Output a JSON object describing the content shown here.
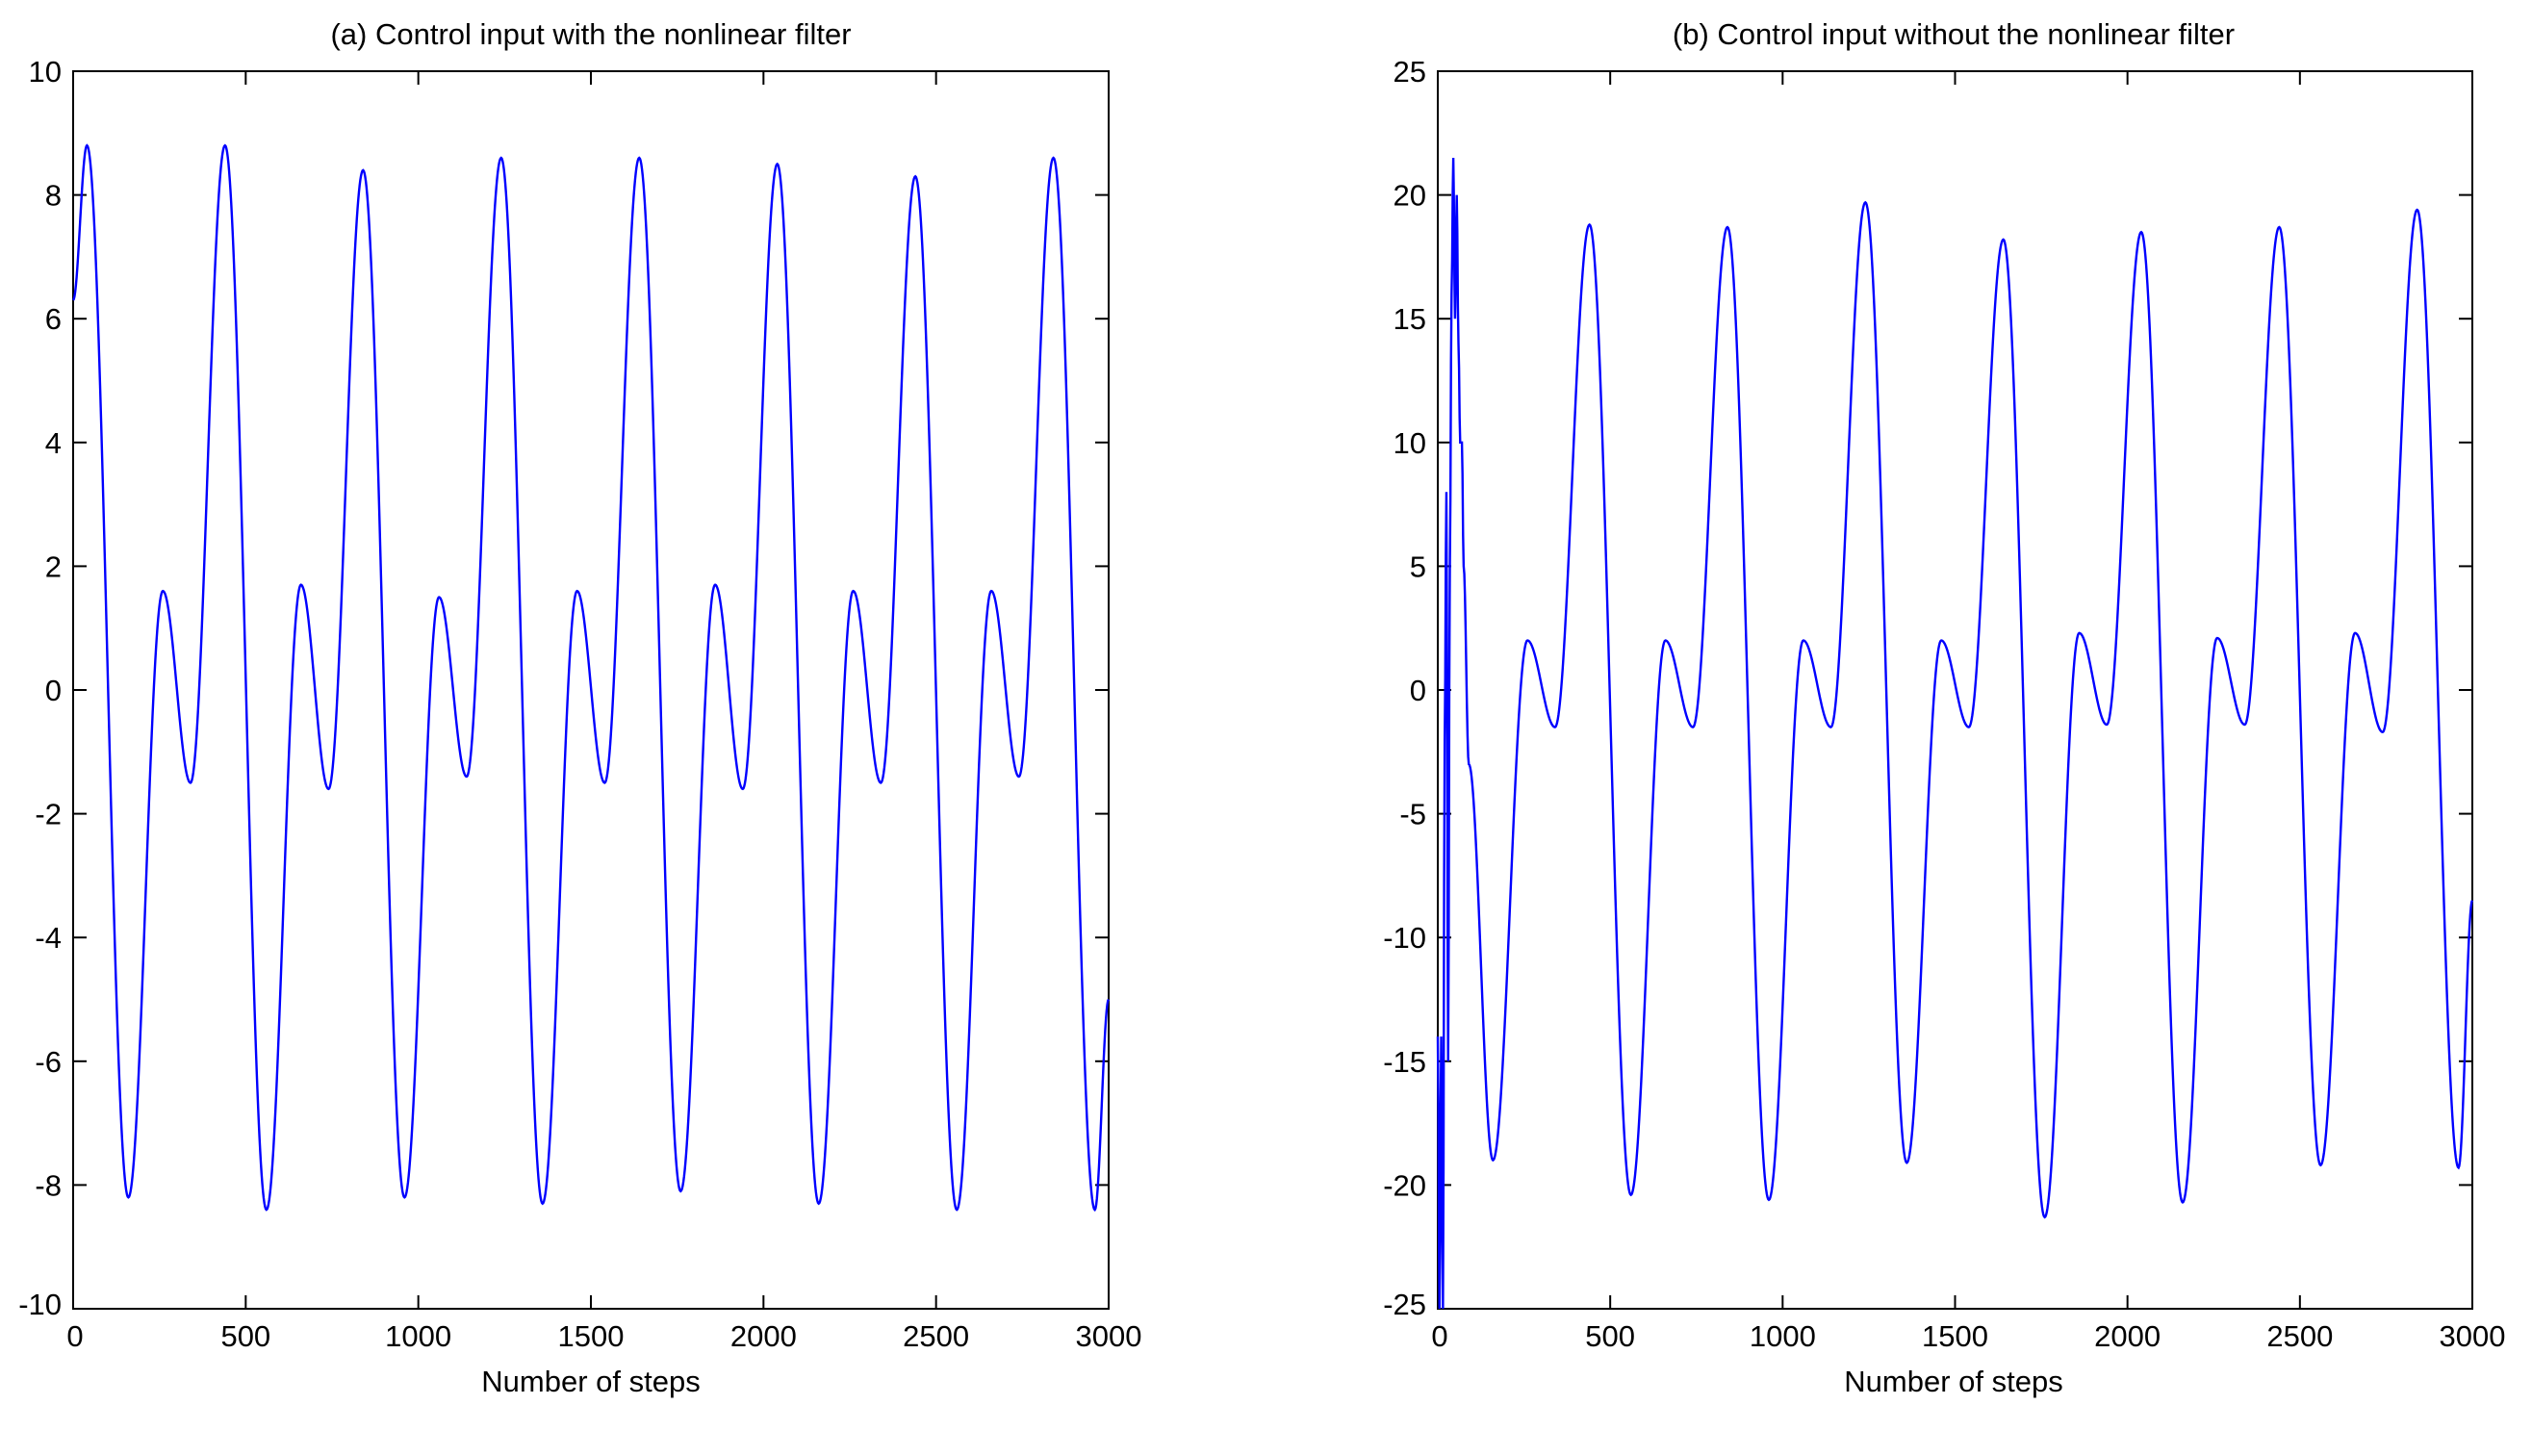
{
  "chart_data": [
    {
      "type": "line",
      "title": "(a)  Control input with the nonlinear filter",
      "xlabel": "Number of steps",
      "ylabel": "",
      "xlim": [
        0,
        3000
      ],
      "ylim": [
        -10,
        10
      ],
      "xticks": [
        0,
        500,
        1000,
        1500,
        2000,
        2500,
        3000
      ],
      "yticks": [
        10,
        8,
        6,
        4,
        2,
        0,
        -2,
        -4,
        -6,
        -8,
        -10
      ],
      "xtick_labels": [
        "0",
        "500",
        "1000",
        "1500",
        "2000",
        "2500",
        "3000"
      ],
      "ytick_labels": [
        "10",
        "8",
        "6",
        "4",
        "2",
        "0",
        "-2",
        "-4",
        "-6",
        "-8",
        "-10"
      ],
      "grid": false,
      "color": "#0000ff",
      "series": [
        {
          "x": [
            0,
            40,
            160,
            260,
            340,
            440,
            560,
            660,
            740,
            840,
            960,
            1060,
            1140,
            1240,
            1360,
            1460,
            1540,
            1640,
            1760,
            1860,
            1940,
            2040,
            2160,
            2260,
            2340,
            2440,
            2560,
            2660,
            2740,
            2840,
            2960,
            3000
          ],
          "y": [
            6.3,
            8.8,
            -8.2,
            1.6,
            -1.5,
            8.8,
            -8.4,
            1.7,
            -1.6,
            8.4,
            -8.2,
            1.5,
            -1.4,
            8.6,
            -8.3,
            1.6,
            -1.5,
            8.6,
            -8.1,
            1.7,
            -1.6,
            8.5,
            -8.3,
            1.6,
            -1.5,
            8.3,
            -8.4,
            1.6,
            -1.4,
            8.6,
            -8.4,
            -5.0
          ]
        }
      ]
    },
    {
      "type": "line",
      "title": "(b)  Control input without the nonlinear filter",
      "xlabel": "Number of steps",
      "ylabel": "",
      "xlim": [
        0,
        3000
      ],
      "ylim": [
        -25,
        25
      ],
      "xticks": [
        0,
        500,
        1000,
        1500,
        2000,
        2500,
        3000
      ],
      "yticks": [
        25,
        20,
        15,
        10,
        5,
        0,
        -5,
        -10,
        -15,
        -20,
        -25
      ],
      "xtick_labels": [
        "0",
        "500",
        "1000",
        "1500",
        "2000",
        "2500",
        "3000"
      ],
      "ytick_labels": [
        "25",
        "20",
        "15",
        "10",
        "5",
        "0",
        "-5",
        "-10",
        "-15",
        "-20",
        "-25"
      ],
      "grid": false,
      "color": "#0000ff",
      "series": [
        {
          "x": [
            0,
            5,
            10,
            15,
            20,
            25,
            30,
            35,
            40,
            45,
            50,
            55,
            60,
            65,
            70,
            75,
            90,
            160,
            260,
            340,
            440,
            560,
            660,
            740,
            840,
            960,
            1060,
            1140,
            1240,
            1360,
            1460,
            1540,
            1640,
            1760,
            1860,
            1940,
            2040,
            2160,
            2260,
            2340,
            2440,
            2560,
            2660,
            2740,
            2840,
            2960,
            3000
          ],
          "y": [
            -14,
            -25,
            -14,
            -25,
            -2,
            8,
            -15,
            5,
            16,
            21.5,
            15,
            20,
            14,
            10,
            10,
            5,
            -3,
            -19,
            2,
            -1.5,
            18.8,
            -20.4,
            2,
            -1.5,
            18.7,
            -20.6,
            2,
            -1.5,
            19.7,
            -19.1,
            2,
            -1.5,
            18.2,
            -21.3,
            2.3,
            -1.4,
            18.5,
            -20.7,
            2.1,
            -1.4,
            18.7,
            -19.2,
            2.3,
            -1.7,
            19.4,
            -19.3,
            -8.5
          ]
        }
      ]
    }
  ]
}
